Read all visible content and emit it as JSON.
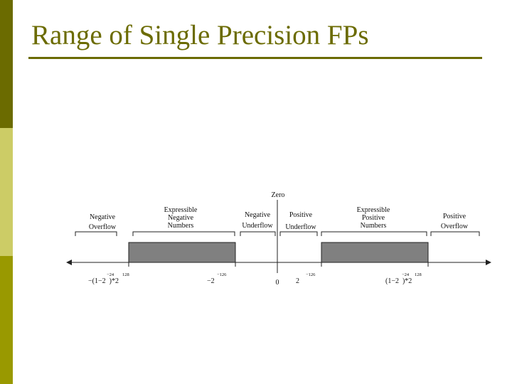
{
  "slide": {
    "title": "Range of Single Precision FPs",
    "colors": {
      "title": "#6b6b00",
      "bar_top": "#6b6b00",
      "bar_mid": "#cccc66",
      "bar_bottom": "#999900",
      "fill": "#808080"
    }
  },
  "diagram": {
    "zero_label": "Zero",
    "regions": [
      {
        "name": "negative-overflow",
        "lines": [
          "Negative",
          "Overflow"
        ]
      },
      {
        "name": "expressible-negative",
        "lines": [
          "Expressible",
          "Negative",
          "Numbers"
        ]
      },
      {
        "name": "negative-underflow",
        "lines": [
          "Negative",
          "Underflow"
        ]
      },
      {
        "name": "positive-underflow",
        "lines": [
          "Positive",
          "Underflow"
        ]
      },
      {
        "name": "expressible-positive",
        "lines": [
          "Expressible",
          "Positive",
          "Numbers"
        ]
      },
      {
        "name": "positive-overflow",
        "lines": [
          "Positive",
          "Overflow"
        ]
      }
    ],
    "tick_labels": {
      "neg_max": {
        "base": "−(1−2  )*2",
        "sup1": "−24",
        "sup2": "128"
      },
      "neg_min": {
        "base": "−2",
        "sup": "−126"
      },
      "zero": {
        "base": "0"
      },
      "pos_min": {
        "base": "2",
        "sup": "−126"
      },
      "pos_max": {
        "base": "(1−2  )*2",
        "sup1": "−24",
        "sup2": "128"
      }
    }
  }
}
